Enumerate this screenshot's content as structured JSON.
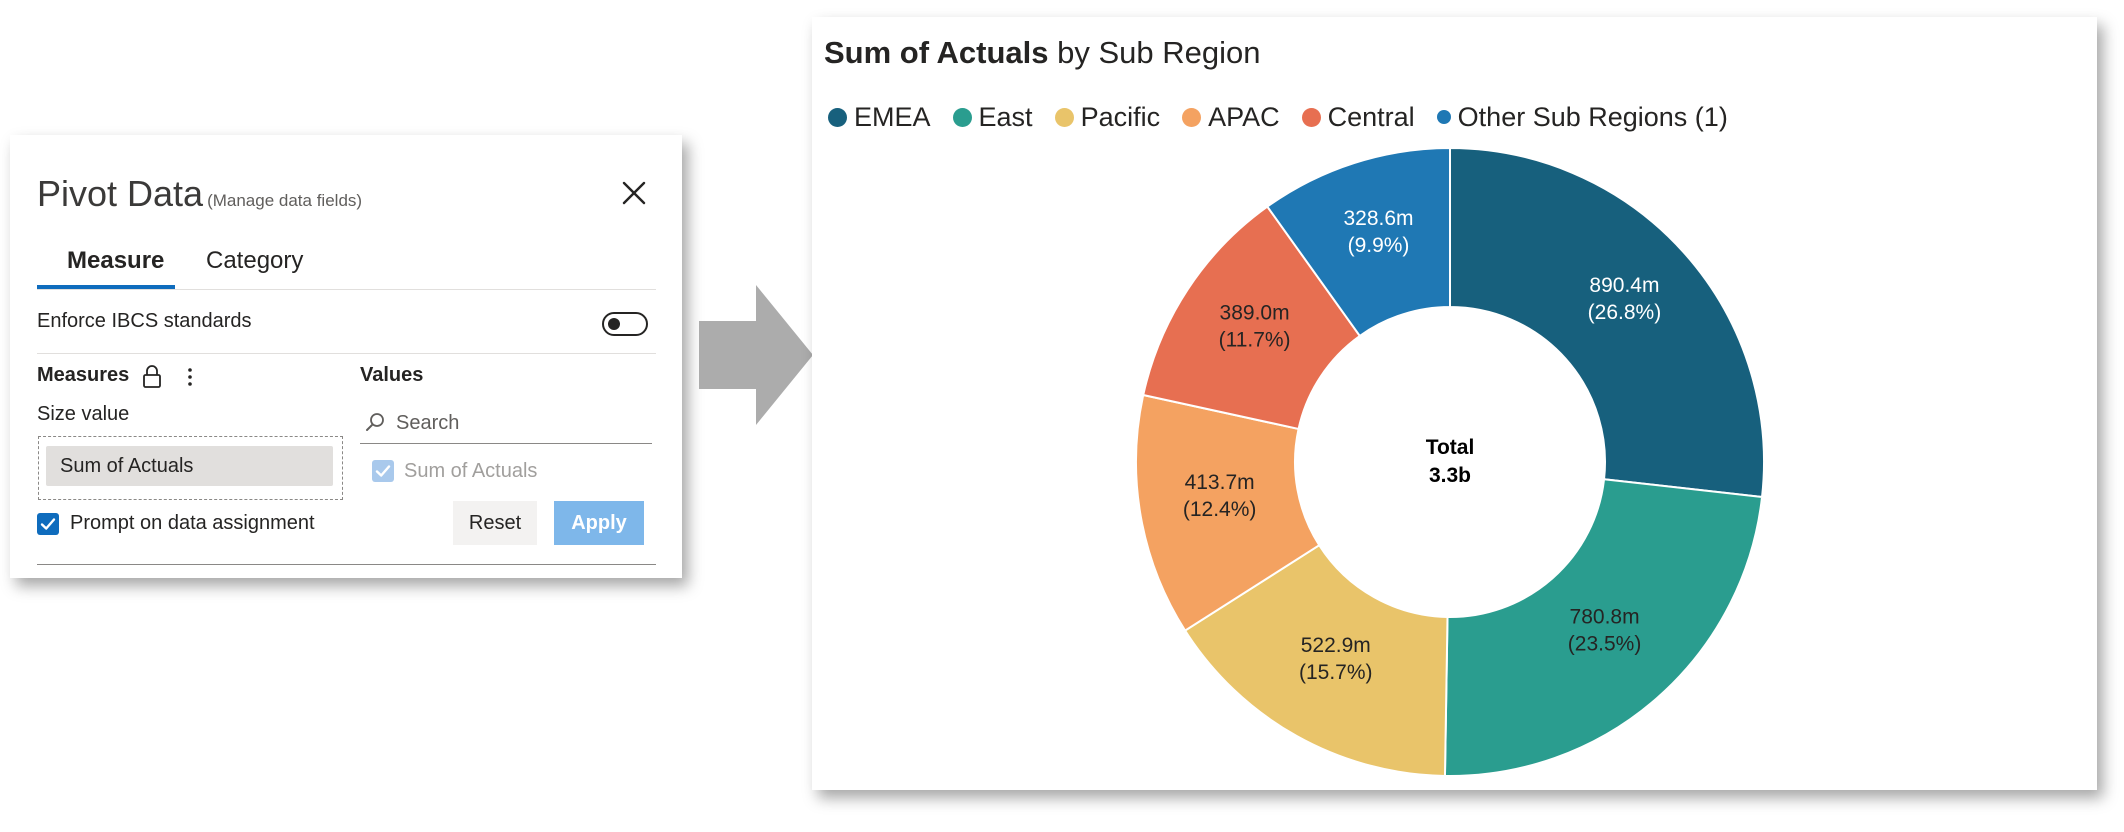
{
  "dialog": {
    "title": "Pivot Data",
    "subtitle": "(Manage data fields)",
    "tabs": [
      {
        "label": "Measure",
        "active": true
      },
      {
        "label": "Category",
        "active": false
      }
    ],
    "enforce_label": "Enforce IBCS standards",
    "enforce_on": false,
    "measures_header": "Measures",
    "size_label": "Size value",
    "size_chip": "Sum of Actuals",
    "prompt_label": "Prompt on data assignment",
    "prompt_checked": true,
    "values_header": "Values",
    "search_placeholder": "Search",
    "value_items": [
      {
        "label": "Sum of Actuals",
        "checked": true,
        "disabled": true
      }
    ],
    "reset_label": "Reset",
    "apply_label": "Apply"
  },
  "chart": {
    "title_measure": "Sum of Actuals",
    "title_rest": " by Sub Region",
    "center_label": "Total",
    "center_value": "3.3b"
  },
  "chart_data": {
    "type": "pie",
    "donut": true,
    "title": "Sum of Actuals by Sub Region",
    "legend_position": "top-left",
    "total": "3.3b",
    "categories": [
      "EMEA",
      "East",
      "Pacific",
      "APAC",
      "Central",
      "Other Sub Regions (1)"
    ],
    "values": [
      890.4,
      780.8,
      522.9,
      413.7,
      389.0,
      328.6
    ],
    "value_labels": [
      "890.4m",
      "780.8m",
      "522.9m",
      "413.7m",
      "389.0m",
      "328.6m"
    ],
    "percent_labels": [
      "(26.8%)",
      "(23.5%)",
      "(15.7%)",
      "(12.4%)",
      "(11.7%)",
      "(9.9%)"
    ],
    "colors": [
      "#17607d",
      "#2a9d8f",
      "#e9c46a",
      "#f4a261",
      "#e76f51",
      "#1f78b4"
    ],
    "label_colors": [
      "#ffffff",
      "#252423",
      "#252423",
      "#252423",
      "#252423",
      "#ffffff"
    ]
  }
}
